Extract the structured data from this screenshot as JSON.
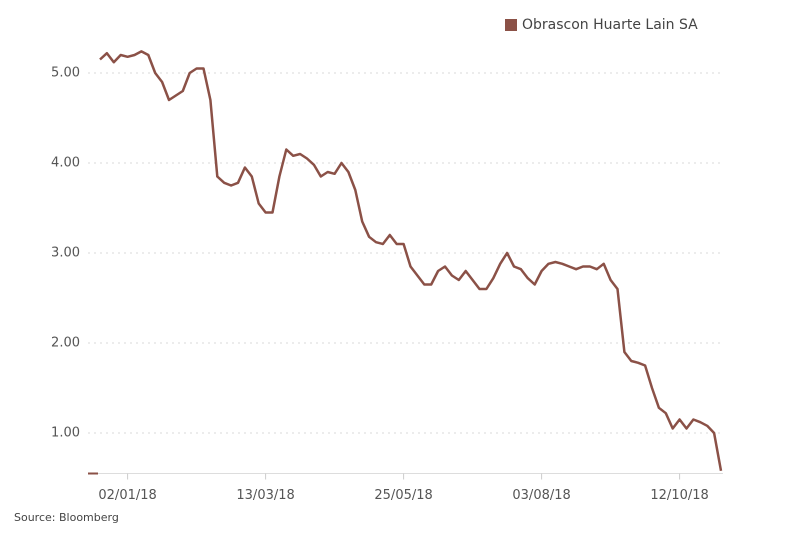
{
  "chart_data": {
    "type": "line",
    "categories": [
      null,
      null,
      null,
      null,
      "02/01/18",
      null,
      null,
      null,
      null,
      null,
      null,
      null,
      null,
      null,
      null,
      null,
      null,
      null,
      null,
      null,
      null,
      null,
      null,
      null,
      "13/03/18",
      null,
      null,
      null,
      null,
      null,
      null,
      null,
      null,
      null,
      null,
      null,
      null,
      null,
      null,
      null,
      null,
      null,
      null,
      null,
      "25/05/18",
      null,
      null,
      null,
      null,
      null,
      null,
      null,
      null,
      null,
      null,
      null,
      null,
      null,
      null,
      null,
      null,
      null,
      null,
      null,
      "03/08/18",
      null,
      null,
      null,
      null,
      null,
      null,
      null,
      null,
      null,
      null,
      null,
      null,
      null,
      null,
      null,
      null,
      null,
      null,
      null,
      "12/10/18",
      null,
      null,
      null,
      null,
      null,
      null
    ],
    "series": [
      {
        "name": "Obrascon Huarte Lain SA",
        "color": "#8b5147",
        "values": [
          5.15,
          5.22,
          5.12,
          5.2,
          5.18,
          5.2,
          5.24,
          5.2,
          5.0,
          4.9,
          4.7,
          4.75,
          4.8,
          5.0,
          5.05,
          5.05,
          4.7,
          3.85,
          3.78,
          3.75,
          3.78,
          3.95,
          3.85,
          3.55,
          3.45,
          3.45,
          3.85,
          4.15,
          4.08,
          4.1,
          4.05,
          3.98,
          3.85,
          3.9,
          3.88,
          4.0,
          3.9,
          3.7,
          3.35,
          3.18,
          3.12,
          3.1,
          3.2,
          3.1,
          3.1,
          2.85,
          2.75,
          2.65,
          2.65,
          2.8,
          2.85,
          2.75,
          2.7,
          2.8,
          2.7,
          2.6,
          2.6,
          2.72,
          2.88,
          3.0,
          2.85,
          2.82,
          2.72,
          2.65,
          2.8,
          2.88,
          2.9,
          2.88,
          2.85,
          2.82,
          2.85,
          2.85,
          2.82,
          2.88,
          2.7,
          2.6,
          1.9,
          1.8,
          1.78,
          1.75,
          1.5,
          1.28,
          1.22,
          1.05,
          1.15,
          1.05,
          1.15,
          1.12,
          1.08,
          1.0,
          0.58
        ]
      }
    ],
    "ylim": [
      0.55,
      5.4
    ],
    "yticks": [
      {
        "value": 1,
        "label": "1.00"
      },
      {
        "value": 2,
        "label": "2.00"
      },
      {
        "value": 3,
        "label": "3.00"
      },
      {
        "value": 4,
        "label": "4.00"
      },
      {
        "value": 5,
        "label": "5.00"
      }
    ],
    "grid": true,
    "legend": "top-right",
    "source": "Source: Bloomberg"
  }
}
